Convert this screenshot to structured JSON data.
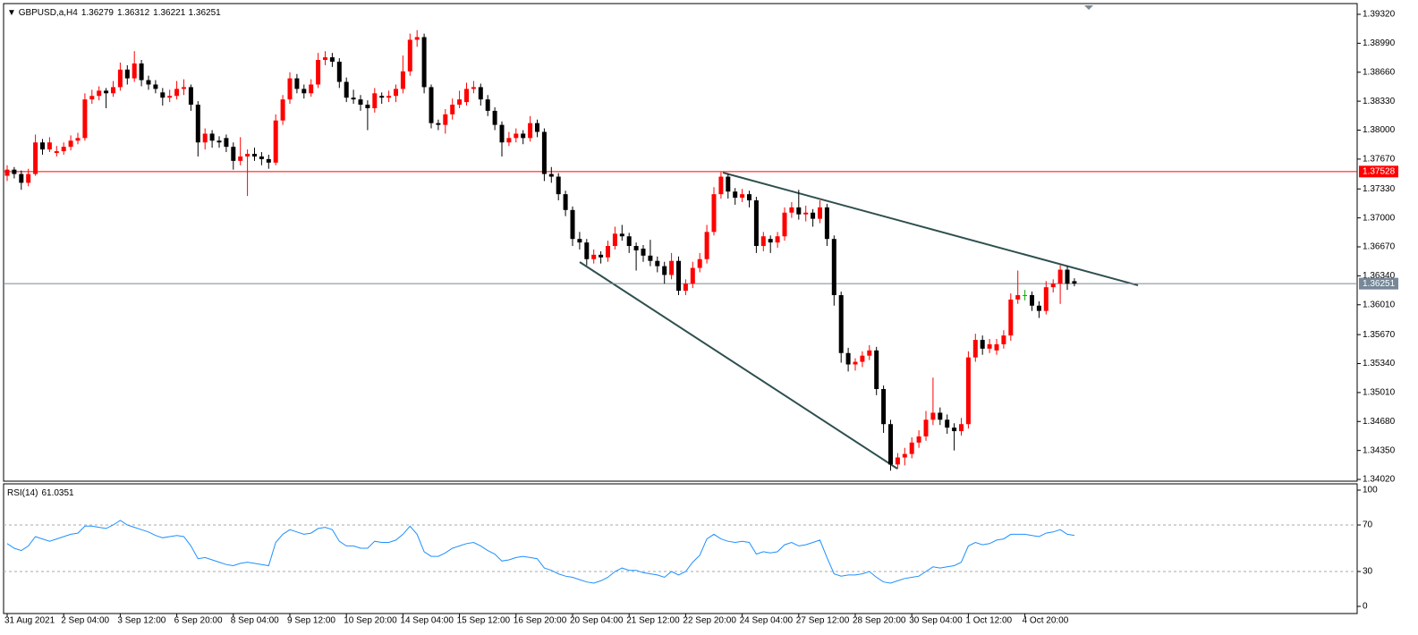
{
  "chart_data": [
    {
      "type": "candlestick",
      "symbol": "GBPUSD,a,H4",
      "x": [
        "31 Aug 2021",
        null,
        null,
        null,
        null,
        null,
        null,
        null,
        "2 Sep 04:00",
        null,
        null,
        null,
        null,
        null,
        null,
        null,
        "3 Sep 12:00",
        null,
        null,
        null,
        null,
        null,
        null,
        null,
        "6 Sep 20:00",
        null,
        null,
        null,
        null,
        null,
        null,
        null,
        "8 Sep 04:00",
        null,
        null,
        null,
        null,
        null,
        null,
        null,
        "9 Sep 12:00",
        null,
        null,
        null,
        null,
        null,
        null,
        null,
        "10 Sep 20:00",
        null,
        null,
        null,
        null,
        null,
        null,
        null,
        "14 Sep 04:00",
        null,
        null,
        null,
        null,
        null,
        null,
        null,
        "15 Sep 12:00",
        null,
        null,
        null,
        null,
        null,
        null,
        null,
        "16 Sep 20:00",
        null,
        null,
        null,
        null,
        null,
        null,
        null,
        "20 Sep 04:00",
        null,
        null,
        null,
        null,
        null,
        null,
        null,
        "21 Sep 12:00",
        null,
        null,
        null,
        null,
        null,
        null,
        null,
        "22 Sep 20:00",
        null,
        null,
        null,
        null,
        null,
        null,
        null,
        "24 Sep 04:00",
        null,
        null,
        null,
        null,
        null,
        null,
        null,
        "27 Sep 12:00",
        null,
        null,
        null,
        null,
        null,
        null,
        null,
        "28 Sep 20:00",
        null,
        null,
        null,
        null,
        null,
        null,
        null,
        "30 Sep 04:00",
        null,
        null,
        null,
        null,
        null,
        null,
        null,
        "1 Oct 12:00",
        null,
        null,
        null,
        null,
        null,
        null,
        null,
        "4 Oct 20:00",
        null,
        null,
        null,
        null,
        null,
        null,
        null
      ],
      "open": [
        1.3748,
        1.3755,
        1.375,
        1.374,
        1.375,
        1.3786,
        1.3778,
        1.3774,
        1.3776,
        1.3781,
        1.3788,
        1.3791,
        1.3835,
        1.3839,
        1.3845,
        1.3842,
        1.3849,
        1.3869,
        1.3859,
        1.3876,
        1.3857,
        1.3852,
        1.3843,
        1.3837,
        1.3839,
        1.3847,
        1.3849,
        1.3829,
        1.3786,
        1.3796,
        1.3788,
        1.3791,
        1.3781,
        1.3765,
        1.377,
        1.3773,
        1.377,
        1.3767,
        1.3763,
        1.3811,
        1.3835,
        1.3859,
        1.3847,
        1.3842,
        1.3852,
        1.388,
        1.3883,
        1.3878,
        1.3855,
        1.3837,
        1.3835,
        1.3829,
        1.3825,
        1.3839,
        1.3837,
        1.3839,
        1.3847,
        1.3867,
        1.3903,
        1.3906,
        1.3849,
        1.3808,
        1.3806,
        1.3818,
        1.3829,
        1.3832,
        1.3847,
        1.3849,
        1.3835,
        1.3822,
        1.3806,
        1.3786,
        1.3791,
        1.3796,
        1.3791,
        1.3808,
        1.3798,
        1.375,
        1.3747,
        1.3727,
        1.3709,
        1.3676,
        1.3672,
        1.3653,
        1.3658,
        1.3655,
        1.3668,
        1.3682,
        1.3679,
        1.3668,
        1.3665,
        1.3657,
        1.3651,
        1.3645,
        1.3635,
        1.3651,
        1.3617,
        1.3625,
        1.3643,
        1.3653,
        1.3684,
        1.3727,
        1.3747,
        1.373,
        1.3723,
        1.3727,
        1.372,
        1.3668,
        1.3676,
        1.3672,
        1.3679,
        1.3706,
        1.3712,
        1.3704,
        1.3706,
        1.3699,
        1.3712,
        1.3676,
        1.3612,
        1.3546,
        1.3533,
        1.3536,
        1.3543,
        1.3549,
        1.3505,
        1.3465,
        1.3419,
        1.3427,
        1.3431,
        1.3444,
        1.3451,
        1.347,
        1.3478,
        1.347,
        1.3461,
        1.3457,
        1.3465,
        1.3541,
        1.3561,
        1.3551,
        1.3549,
        1.3556,
        1.3566,
        1.3607,
        1.3612,
        1.3612,
        1.36,
        1.3594,
        1.3621,
        1.3625,
        1.3641,
        1.36279
      ],
      "high": [
        1.376,
        1.3758,
        1.3754,
        1.3756,
        1.3795,
        1.379,
        1.3792,
        1.3782,
        1.3786,
        1.3794,
        1.3797,
        1.3842,
        1.3846,
        1.385,
        1.3848,
        1.3856,
        1.3877,
        1.3874,
        1.389,
        1.388,
        1.3862,
        1.3857,
        1.3848,
        1.3846,
        1.3856,
        1.3858,
        1.3852,
        1.3833,
        1.3802,
        1.38,
        1.3793,
        1.3795,
        1.3786,
        1.3792,
        1.3778,
        1.378,
        1.3775,
        1.3772,
        1.3818,
        1.384,
        1.3866,
        1.3864,
        1.3852,
        1.3858,
        1.3888,
        1.389,
        1.3888,
        1.3882,
        1.386,
        1.3846,
        1.384,
        1.3834,
        1.3848,
        1.3843,
        1.3845,
        1.3852,
        1.3885,
        1.391,
        1.3914,
        1.391,
        1.3852,
        1.3812,
        1.3824,
        1.3836,
        1.3845,
        1.3854,
        1.3856,
        1.3853,
        1.384,
        1.3826,
        1.381,
        1.3798,
        1.3802,
        1.38,
        1.3816,
        1.3812,
        1.3802,
        1.3758,
        1.3751,
        1.3731,
        1.3713,
        1.3684,
        1.3676,
        1.3664,
        1.3662,
        1.3674,
        1.369,
        1.3692,
        1.3683,
        1.3672,
        1.3669,
        1.3675,
        1.3656,
        1.365,
        1.366,
        1.3656,
        1.363,
        1.365,
        1.366,
        1.3692,
        1.3735,
        1.3752,
        1.375,
        1.3734,
        1.3733,
        1.3731,
        1.3724,
        1.3684,
        1.368,
        1.3684,
        1.3712,
        1.3718,
        1.3732,
        1.3714,
        1.371,
        1.372,
        1.3716,
        1.368,
        1.3616,
        1.3552,
        1.354,
        1.3548,
        1.3555,
        1.3553,
        1.3509,
        1.347,
        1.3432,
        1.3438,
        1.345,
        1.3458,
        1.348,
        1.3518,
        1.3484,
        1.3476,
        1.3466,
        1.3472,
        1.3548,
        1.3568,
        1.3566,
        1.3562,
        1.3562,
        1.3572,
        1.3614,
        1.364,
        1.3618,
        1.3616,
        1.3605,
        1.3628,
        1.363,
        1.3646,
        1.3645,
        1.36312
      ],
      "low": [
        1.3742,
        1.3745,
        1.3732,
        1.3736,
        1.3748,
        1.3772,
        1.3775,
        1.377,
        1.3772,
        1.3777,
        1.3784,
        1.3788,
        1.383,
        1.3834,
        1.3825,
        1.3838,
        1.3845,
        1.3852,
        1.3855,
        1.385,
        1.3846,
        1.3842,
        1.3828,
        1.3832,
        1.3835,
        1.384,
        1.3822,
        1.377,
        1.3778,
        1.378,
        1.378,
        1.3775,
        1.3755,
        1.376,
        1.3725,
        1.3765,
        1.376,
        1.3756,
        1.376,
        1.3806,
        1.383,
        1.3842,
        1.3836,
        1.3838,
        1.3848,
        1.3874,
        1.3872,
        1.3848,
        1.3832,
        1.383,
        1.3822,
        1.38,
        1.382,
        1.383,
        1.3832,
        1.3832,
        1.3842,
        1.3862,
        1.3895,
        1.3842,
        1.3802,
        1.38,
        1.3796,
        1.3812,
        1.3825,
        1.3828,
        1.3842,
        1.3828,
        1.3816,
        1.38,
        1.377,
        1.3782,
        1.3786,
        1.3784,
        1.3787,
        1.3792,
        1.3742,
        1.374,
        1.372,
        1.3702,
        1.3668,
        1.3664,
        1.3646,
        1.3648,
        1.3648,
        1.365,
        1.3664,
        1.3674,
        1.366,
        1.364,
        1.365,
        1.3645,
        1.3638,
        1.3625,
        1.363,
        1.3612,
        1.3612,
        1.362,
        1.3638,
        1.3648,
        1.368,
        1.3722,
        1.3722,
        1.3715,
        1.3718,
        1.3712,
        1.366,
        1.3662,
        1.366,
        1.3666,
        1.3674,
        1.37,
        1.3698,
        1.3696,
        1.369,
        1.3694,
        1.3668,
        1.36,
        1.3535,
        1.3525,
        1.3526,
        1.353,
        1.3538,
        1.3498,
        1.3455,
        1.3412,
        1.3414,
        1.3418,
        1.3426,
        1.3438,
        1.3446,
        1.3464,
        1.3464,
        1.3454,
        1.3435,
        1.3452,
        1.346,
        1.3536,
        1.3544,
        1.3546,
        1.3544,
        1.3551,
        1.356,
        1.3602,
        1.3606,
        1.3594,
        1.3586,
        1.359,
        1.3615,
        1.3602,
        1.3618,
        1.36221
      ],
      "close": [
        1.3755,
        1.375,
        1.374,
        1.375,
        1.3786,
        1.3778,
        1.3786,
        1.3776,
        1.3781,
        1.3788,
        1.3791,
        1.3835,
        1.3839,
        1.3845,
        1.3842,
        1.3849,
        1.3869,
        1.3859,
        1.3876,
        1.3857,
        1.3852,
        1.3847,
        1.3837,
        1.3839,
        1.3847,
        1.3849,
        1.3829,
        1.3786,
        1.3796,
        1.3788,
        1.3786,
        1.3781,
        1.3765,
        1.377,
        1.3773,
        1.377,
        1.3767,
        1.3763,
        1.3811,
        1.3835,
        1.3859,
        1.3847,
        1.3842,
        1.3852,
        1.388,
        1.3883,
        1.3878,
        1.3855,
        1.3837,
        1.3835,
        1.3829,
        1.3825,
        1.3842,
        1.3837,
        1.3839,
        1.3847,
        1.3867,
        1.3903,
        1.3906,
        1.3849,
        1.3808,
        1.3806,
        1.3818,
        1.3829,
        1.3835,
        1.3847,
        1.3849,
        1.3835,
        1.3822,
        1.3806,
        1.3786,
        1.3791,
        1.3796,
        1.3791,
        1.3808,
        1.3798,
        1.375,
        1.3747,
        1.3727,
        1.3709,
        1.3676,
        1.3672,
        1.3653,
        1.3658,
        1.3655,
        1.3668,
        1.3682,
        1.3679,
        1.3668,
        1.3663,
        1.3657,
        1.3651,
        1.3645,
        1.3635,
        1.3651,
        1.3617,
        1.3625,
        1.3643,
        1.3653,
        1.3684,
        1.3727,
        1.3747,
        1.373,
        1.3723,
        1.3727,
        1.372,
        1.3668,
        1.3679,
        1.3672,
        1.3679,
        1.3706,
        1.3712,
        1.3704,
        1.3706,
        1.3699,
        1.3712,
        1.3676,
        1.3612,
        1.3546,
        1.3533,
        1.3536,
        1.3543,
        1.3549,
        1.3505,
        1.3465,
        1.3419,
        1.3427,
        1.3431,
        1.3444,
        1.3451,
        1.347,
        1.3478,
        1.347,
        1.3461,
        1.3457,
        1.3465,
        1.3541,
        1.3561,
        1.3551,
        1.3556,
        1.3556,
        1.3566,
        1.3607,
        1.3612,
        1.3612,
        1.36,
        1.3594,
        1.3621,
        1.3625,
        1.3641,
        1.3625,
        1.36251
      ],
      "up_color": "#ff0000",
      "down_color": "#000000",
      "doji_color": "#00b000",
      "ylim": [
        1.34,
        1.39432
      ],
      "yticks": [
        {
          "value": 1.3932,
          "label": "1.39320"
        },
        {
          "value": 1.3899,
          "label": "1.38990"
        },
        {
          "value": 1.3866,
          "label": "1.38660"
        },
        {
          "value": 1.3833,
          "label": "1.38330"
        },
        {
          "value": 1.38,
          "label": "1.38000"
        },
        {
          "value": 1.3767,
          "label": "1.37670"
        },
        {
          "value": 1.3733,
          "label": "1.37330"
        },
        {
          "value": 1.37,
          "label": "1.37000"
        },
        {
          "value": 1.3667,
          "label": "1.36670"
        },
        {
          "value": 1.3634,
          "label": "1.36340"
        },
        {
          "value": 1.3601,
          "label": "1.36010"
        },
        {
          "value": 1.3567,
          "label": "1.35670"
        },
        {
          "value": 1.3534,
          "label": "1.35340"
        },
        {
          "value": 1.3501,
          "label": "1.35010"
        },
        {
          "value": 1.3468,
          "label": "1.34680"
        },
        {
          "value": 1.3435,
          "label": "1.34350"
        },
        {
          "value": 1.3402,
          "label": "1.34020"
        }
      ],
      "levels": [
        {
          "value": 1.37528,
          "color": "#ff0000"
        }
      ],
      "bid_line_color": "#778899"
    },
    {
      "type": "line",
      "title": "RSI(14)",
      "series": [
        {
          "color": "#1e90ff",
          "values": [
            54,
            50,
            48,
            52,
            60,
            58,
            56,
            58,
            60,
            62,
            63,
            69,
            69,
            68,
            67,
            70,
            74,
            70,
            68,
            66,
            64,
            61,
            59,
            60,
            61,
            60,
            52,
            41,
            42,
            40,
            38,
            36,
            35,
            37,
            38,
            37,
            36,
            35,
            55,
            62,
            66,
            64,
            62,
            63,
            67,
            68,
            66,
            56,
            52,
            52,
            50,
            50,
            56,
            55,
            55,
            57,
            62,
            69,
            62,
            47,
            43,
            43,
            46,
            50,
            52,
            54,
            55,
            52,
            48,
            45,
            39,
            40,
            42,
            43,
            42,
            41,
            33,
            31,
            28,
            26,
            25,
            23,
            21,
            20,
            22,
            25,
            30,
            33,
            31,
            31,
            29,
            28,
            27,
            25,
            30,
            27,
            30,
            38,
            44,
            58,
            62,
            58,
            56,
            55,
            56,
            55,
            45,
            47,
            46,
            47,
            53,
            55,
            52,
            53,
            55,
            57,
            42,
            28,
            26,
            27,
            27,
            28,
            30,
            25,
            21,
            20,
            22,
            24,
            25,
            26,
            30,
            34,
            33,
            34,
            35,
            38,
            52,
            55,
            53,
            54,
            57,
            58,
            62,
            62,
            62,
            61,
            60,
            63,
            64,
            66,
            62,
            61.0351
          ]
        }
      ],
      "ylim": [
        0,
        100
      ],
      "yticks": [
        100,
        70,
        30,
        0
      ],
      "levels": [
        70,
        30
      ]
    }
  ]
}
